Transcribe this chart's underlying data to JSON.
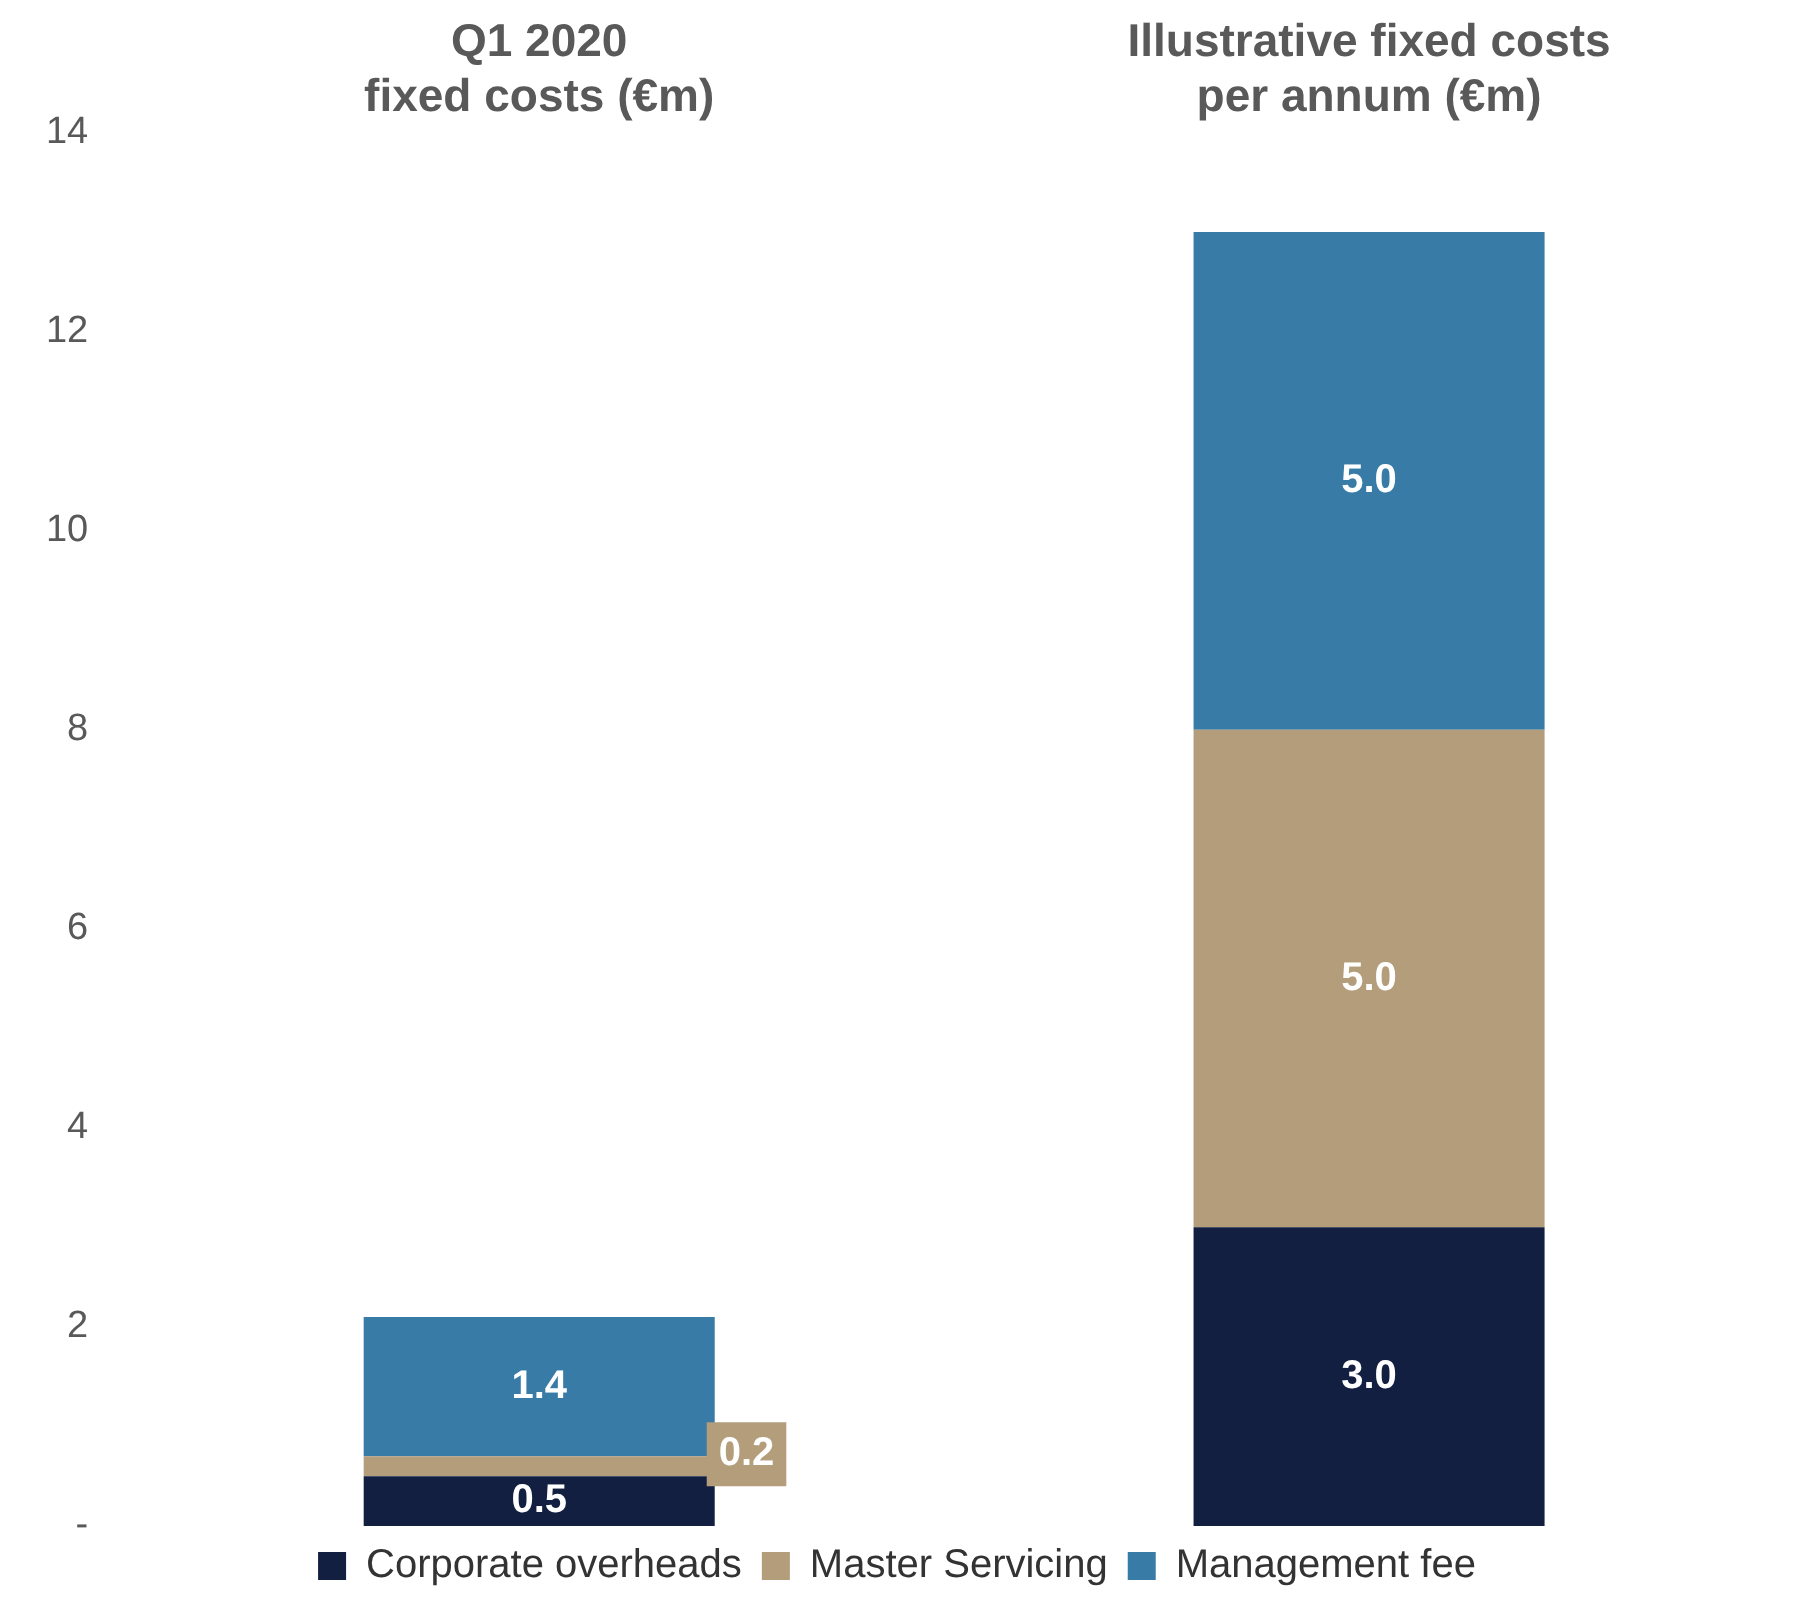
{
  "chart_data": {
    "type": "bar",
    "stacked": true,
    "categories": [
      "Q1 2020\nfixed costs (€m)",
      "Illustrative fixed costs\nper annum (€m)"
    ],
    "series": [
      {
        "name": "Corporate overheads",
        "color": "#131f40",
        "values": [
          0.5,
          3.0
        ],
        "value_labels": [
          "0.5",
          "3.0"
        ]
      },
      {
        "name": "Master Servicing",
        "color": "#b39d7b",
        "values": [
          0.2,
          5.0
        ],
        "value_labels": [
          "0.2",
          "5.0"
        ]
      },
      {
        "name": "Management fee",
        "color": "#377ba6",
        "values": [
          1.4,
          5.0
        ],
        "value_labels": [
          "1.4",
          "5.0"
        ]
      }
    ],
    "ylim": [
      0,
      14
    ],
    "yticks": [
      {
        "value": 0,
        "label": "-"
      },
      2,
      4,
      6,
      8,
      10,
      12,
      14
    ],
    "grid": false,
    "legend": "bottom"
  }
}
